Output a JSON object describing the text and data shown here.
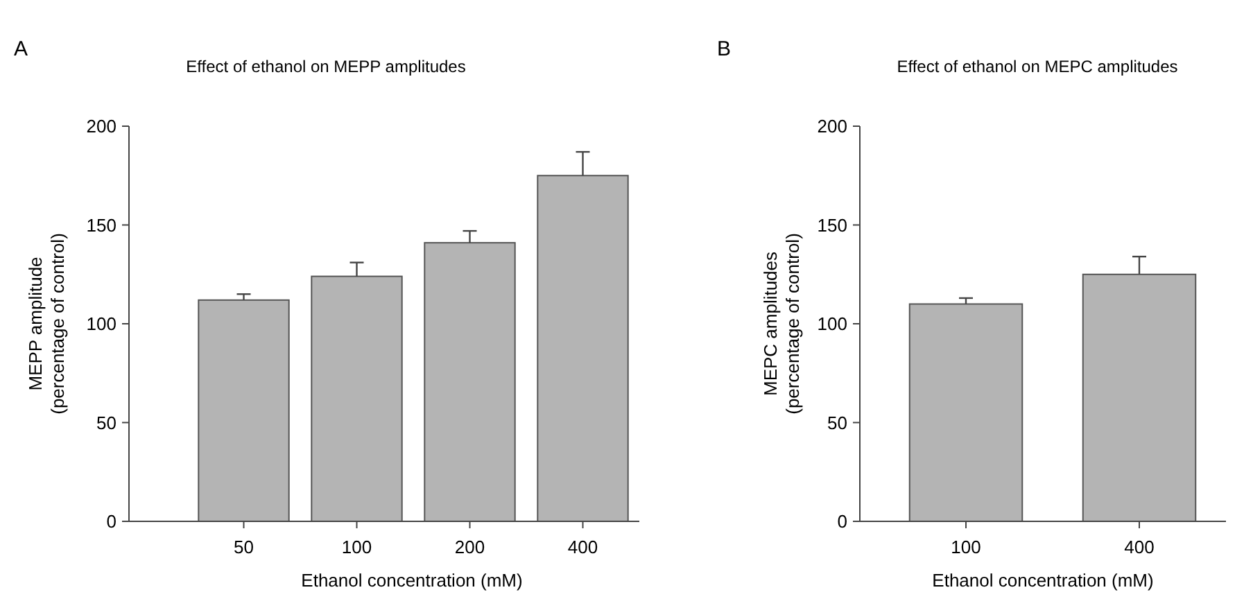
{
  "chart_data": [
    {
      "type": "bar",
      "title": "Effect of ethanol on MEPP amplitudes",
      "xlabel": "Ethanol concentration (mM)",
      "ylabel": "MEPP amplitude\n(percentage of control)",
      "annotations": [
        "A"
      ],
      "categories": [
        "50",
        "100",
        "200",
        "400"
      ],
      "series": [
        {
          "color": "#b4b4b4",
          "values": [
            112,
            124,
            141,
            175
          ],
          "errors": [
            [
              112,
              115
            ],
            [
              124,
              131
            ],
            [
              141,
              147
            ],
            [
              175,
              187
            ]
          ]
        }
      ],
      "ylim": [
        0,
        200
      ],
      "yticks": [
        0,
        50,
        100,
        150,
        200
      ]
    },
    {
      "type": "bar",
      "title": "Effect of ethanol on MEPC amplitudes",
      "xlabel": "Ethanol concentration (mM)",
      "ylabel": "MEPC amplitudes\n(percentage of control)",
      "annotations": [
        "B"
      ],
      "categories": [
        "100",
        "400"
      ],
      "series": [
        {
          "color": "#b4b4b4",
          "values": [
            110,
            125
          ],
          "errors": [
            [
              110,
              113
            ],
            [
              125,
              134
            ]
          ]
        }
      ],
      "ylim": [
        0,
        200
      ],
      "yticks": [
        0,
        50,
        100,
        150,
        200
      ]
    }
  ]
}
